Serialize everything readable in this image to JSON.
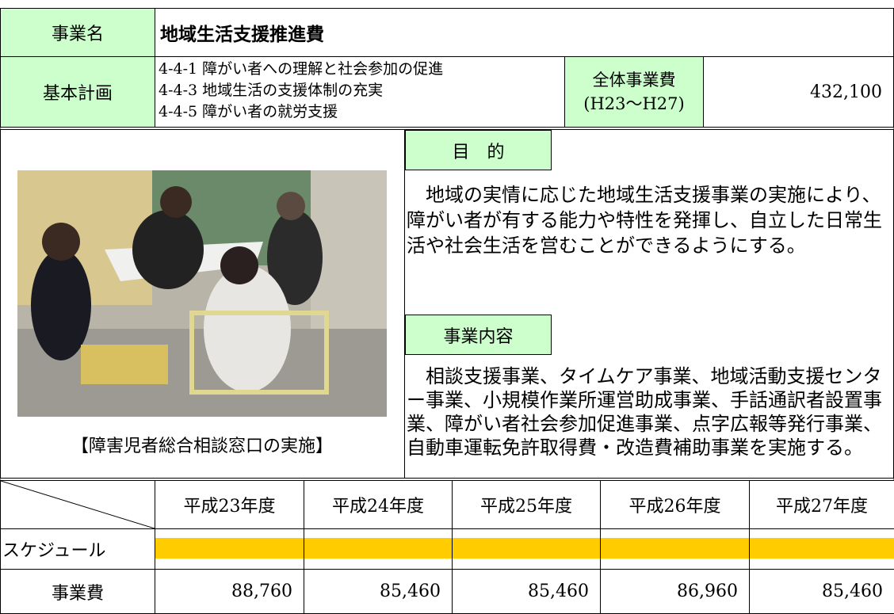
{
  "project": {
    "name_label": "事業名",
    "name": "地域生活支援推進費",
    "plan_label": "基本計画",
    "plan_items": [
      "4-4-1 障がい者への理解と社会参加の促進",
      "4-4-3 地域生活の支援体制の充実",
      "4-4-5 障がい者の就労支援"
    ],
    "total_label": "全体事業費",
    "total_period": "(H23～H27)",
    "total": "432,100"
  },
  "photo_caption": "【障害児者総合相談窓口の実施】",
  "purpose": {
    "label": "目　的",
    "text": "地域の実情に応じた地域生活支援事業の実施により、障がい者が有する能力や特性を発揮し、自立した日常生活や社会生活を営むことができるようにする。"
  },
  "content": {
    "label": "事業内容",
    "text": "相談支援事業、タイムケア事業、地域活動支援センター事業、小規模作業所運営助成事業、手話通訳者設置事業、障がい者社会参加促進事業、点字広報等発行事業、自動車運転免許取得費・改造費補助事業を実施する。"
  },
  "table": {
    "years": [
      "平成23年度",
      "平成24年度",
      "平成25年度",
      "平成26年度",
      "平成27年度"
    ],
    "schedule_label": "スケジュール",
    "cost_label": "事業費",
    "costs": [
      "88,760",
      "85,460",
      "85,460",
      "86,960",
      "85,460"
    ]
  }
}
